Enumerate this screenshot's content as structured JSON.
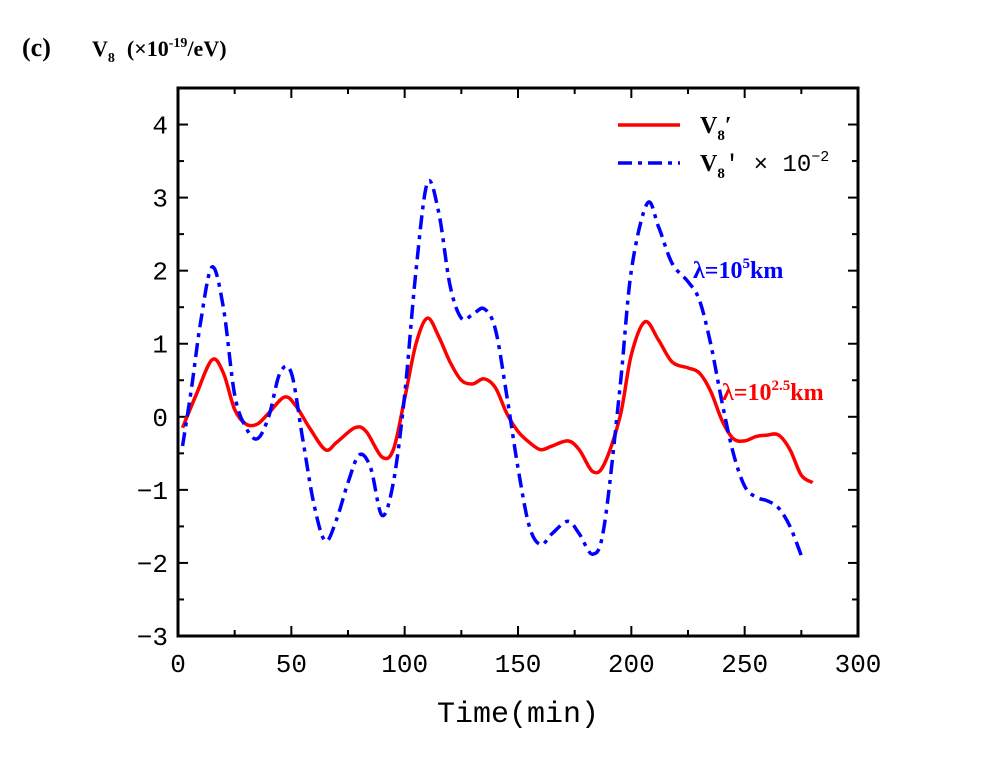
{
  "chart_data": {
    "type": "line",
    "panel_label": "(c)",
    "title": {
      "symbol": "V",
      "subscript": "8",
      "unit_start": "(×10",
      "unit_exponent": "-19",
      "unit_end": "/eV)"
    },
    "x_label": "Time(min)",
    "xlim": [
      0,
      300
    ],
    "ylim": [
      -3,
      4.5
    ],
    "xticks": [
      0,
      50,
      100,
      150,
      200,
      250,
      300
    ],
    "xminorticks": [
      25,
      75,
      125,
      175,
      225,
      275
    ],
    "yticks": [
      {
        "value": -3,
        "label": "−3"
      },
      {
        "value": -2,
        "label": "−2"
      },
      {
        "value": -1,
        "label": "−1"
      },
      0,
      1,
      2,
      3,
      4
    ],
    "yminorticks": [
      -2.5,
      -1.5,
      -0.5,
      0.5,
      1.5,
      2.5,
      3.5
    ],
    "legend": "upper right",
    "series": [
      {
        "name": {
          "symbol": "V",
          "subscript": "8",
          "rest": "′"
        },
        "color": "#ff0000",
        "dash": "solid",
        "x": [
          2,
          8,
          15,
          20,
          25,
          30,
          35,
          40,
          47,
          52,
          58,
          65,
          70,
          78,
          83,
          90,
          95,
          100,
          105,
          110,
          115,
          120,
          125,
          130,
          135,
          140,
          145,
          150,
          155,
          160,
          165,
          172,
          177,
          183,
          188,
          195,
          200,
          206,
          212,
          218,
          225,
          230,
          235,
          240,
          245,
          250,
          255,
          260,
          265,
          270,
          275,
          280
        ],
        "values": [
          -0.15,
          0.3,
          0.78,
          0.6,
          0.1,
          -0.1,
          -0.1,
          0.05,
          0.27,
          0.15,
          -0.15,
          -0.45,
          -0.35,
          -0.15,
          -0.2,
          -0.55,
          -0.45,
          0.25,
          1.0,
          1.35,
          1.1,
          0.75,
          0.5,
          0.45,
          0.52,
          0.4,
          0.05,
          -0.2,
          -0.35,
          -0.45,
          -0.4,
          -0.33,
          -0.45,
          -0.75,
          -0.65,
          0.0,
          0.85,
          1.3,
          1.05,
          0.75,
          0.67,
          0.6,
          0.35,
          -0.05,
          -0.3,
          -0.33,
          -0.27,
          -0.25,
          -0.25,
          -0.45,
          -0.8,
          -0.9
        ]
      },
      {
        "name": {
          "symbol": "V",
          "subscript": "8",
          "rest": "′ × 10",
          "exponent": "−2"
        },
        "color": "#0000ff",
        "dash": "dashdot",
        "x": [
          2,
          6,
          10,
          15,
          20,
          25,
          30,
          35,
          40,
          45,
          50,
          55,
          60,
          65,
          70,
          75,
          80,
          85,
          90,
          95,
          100,
          105,
          110,
          115,
          120,
          125,
          130,
          135,
          140,
          145,
          150,
          155,
          160,
          165,
          172,
          177,
          183,
          188,
          195,
          200,
          207,
          212,
          218,
          225,
          230,
          235,
          240,
          245,
          250,
          255,
          260,
          265,
          270,
          275
        ],
        "values": [
          -0.4,
          0.4,
          1.3,
          2.05,
          1.5,
          0.3,
          -0.15,
          -0.3,
          0.0,
          0.6,
          0.6,
          -0.3,
          -1.2,
          -1.7,
          -1.4,
          -0.9,
          -0.52,
          -0.7,
          -1.35,
          -0.9,
          0.3,
          2.0,
          3.2,
          2.8,
          1.8,
          1.35,
          1.4,
          1.48,
          1.2,
          0.3,
          -0.7,
          -1.5,
          -1.75,
          -1.6,
          -1.43,
          -1.6,
          -1.88,
          -1.5,
          0.4,
          2.0,
          2.92,
          2.6,
          2.1,
          1.85,
          1.6,
          1.0,
          0.2,
          -0.5,
          -0.95,
          -1.1,
          -1.15,
          -1.25,
          -1.5,
          -1.9
        ]
      }
    ],
    "annotations": [
      {
        "base": "λ=10",
        "exponent": "5",
        "unit": "km",
        "color": "#0000ff"
      },
      {
        "base": "λ=10",
        "exponent": "2.5",
        "unit": "km",
        "color": "#ff0000"
      }
    ]
  }
}
